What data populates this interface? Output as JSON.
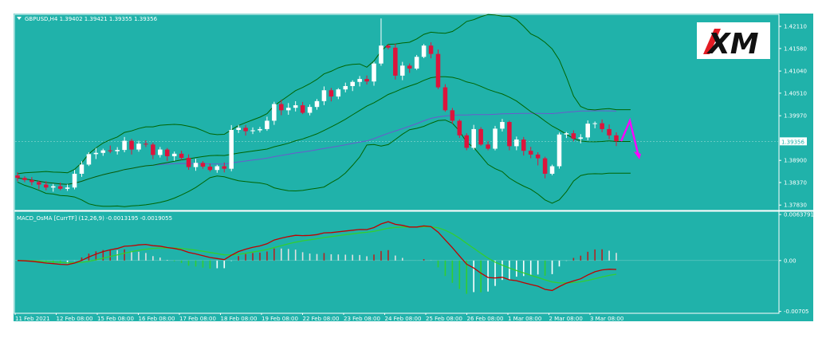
{
  "chart_title": "GBPUSD,H4  1.39402 1.39421 1.39355 1.39356",
  "macd_title": "MACD_OsMA [CurrTF] (12,26,9) -0.0013195 -0.0019055",
  "logo_text": "XM",
  "colors": {
    "background": "#20b2aa",
    "bull_candle": "#ffffff",
    "bear_candle": "#dc143c",
    "bands": "#006400",
    "ma": "#6a5acd",
    "macd_line": "#c00000",
    "signal_line": "#32cd32",
    "arrow": "#ff00ff"
  },
  "chart_data": [
    {
      "type": "candlestick",
      "symbol": "GBPUSD",
      "timeframe": "H4",
      "x_tick_labels": [
        "11 Feb 2021",
        "12 Feb 08:00",
        "15 Feb 08:00",
        "16 Feb 08:00",
        "17 Feb 08:00",
        "18 Feb 08:00",
        "19 Feb 08:00",
        "22 Feb 08:00",
        "23 Feb 08:00",
        "24 Feb 08:00",
        "25 Feb 08:00",
        "26 Feb 08:00",
        "1 Mar 08:00",
        "2 Mar 08:00",
        "3 Mar 08:00"
      ],
      "y_tick_labels": [
        "1.42110",
        "1.41580",
        "1.41040",
        "1.40510",
        "1.39970",
        "1.38900",
        "1.38370",
        "1.37830"
      ],
      "y_ticks": [
        1.4211,
        1.4158,
        1.4104,
        1.4051,
        1.3997,
        1.389,
        1.3837,
        1.3783
      ],
      "current_price_label": "1.39356",
      "current_price": 1.39356,
      "ylim": [
        1.3772,
        1.4236
      ],
      "closes": [
        1.3848,
        1.3843,
        1.3838,
        1.3832,
        1.3825,
        1.3828,
        1.3822,
        1.3825,
        1.3858,
        1.388,
        1.3905,
        1.3908,
        1.3914,
        1.3912,
        1.3915,
        1.3937,
        1.3916,
        1.393,
        1.3928,
        1.3903,
        1.3916,
        1.39,
        1.3906,
        1.3896,
        1.3874,
        1.3884,
        1.3875,
        1.3867,
        1.3876,
        1.387,
        1.3963,
        1.3968,
        1.396,
        1.3962,
        1.3965,
        1.3985,
        1.4025,
        1.401,
        1.4016,
        1.4022,
        1.4004,
        1.4018,
        1.4032,
        1.4058,
        1.4043,
        1.406,
        1.4068,
        1.4078,
        1.4085,
        1.4079,
        1.4122,
        1.4165,
        1.416,
        1.4093,
        1.4117,
        1.411,
        1.4138,
        1.4165,
        1.4145,
        1.4065,
        1.401,
        1.3985,
        1.395,
        1.392,
        1.3965,
        1.3928,
        1.3918,
        1.3966,
        1.3982,
        1.3924,
        1.394,
        1.3913,
        1.3904,
        1.3895,
        1.3858,
        1.3876,
        1.3952,
        1.3955,
        1.3942,
        1.3945,
        1.3978,
        1.3979,
        1.3965,
        1.395,
        1.3936
      ],
      "macd_ylim": [
        -0.0072,
        0.0065
      ],
      "macd_y_tick_labels": [
        "0.0063791",
        "0.00",
        "-0.00705"
      ],
      "macd_y_ticks": [
        0.0063791,
        0,
        -0.00705
      ]
    }
  ]
}
